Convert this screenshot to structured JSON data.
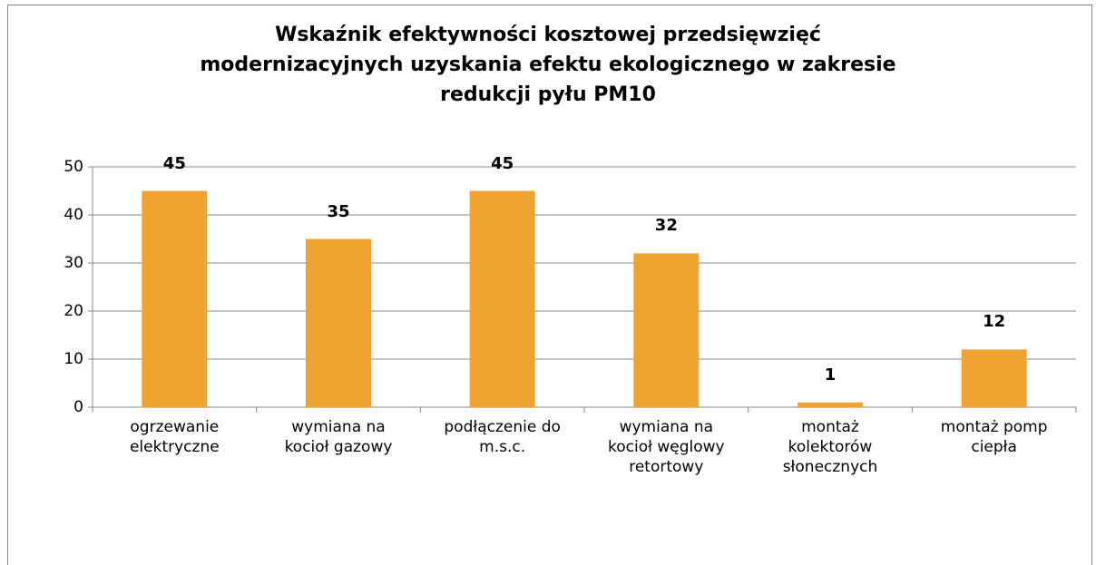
{
  "chart_data": {
    "type": "bar",
    "title": "Wskaźnik efektywności kosztowej przedsięwzięć\nmodernizacyjnych uzyskania efektu ekologicznego w zakresie\nredukcji pyłu PM10",
    "categories": [
      "ogrzewanie\nelektryczne",
      "wymiana na\nkocioł gazowy",
      "podłączenie do\nm.s.c.",
      "wymiana na\nkocioł węglowy\nretortowy",
      "montaż\nkolektorów\nsłonecznych",
      "montaż pomp\nciepła"
    ],
    "values": [
      45,
      35,
      45,
      32,
      1,
      12
    ],
    "color": "#f0a330",
    "ylim": [
      0,
      50
    ],
    "yticks": [
      0,
      10,
      20,
      30,
      40,
      50
    ],
    "grid": true
  }
}
